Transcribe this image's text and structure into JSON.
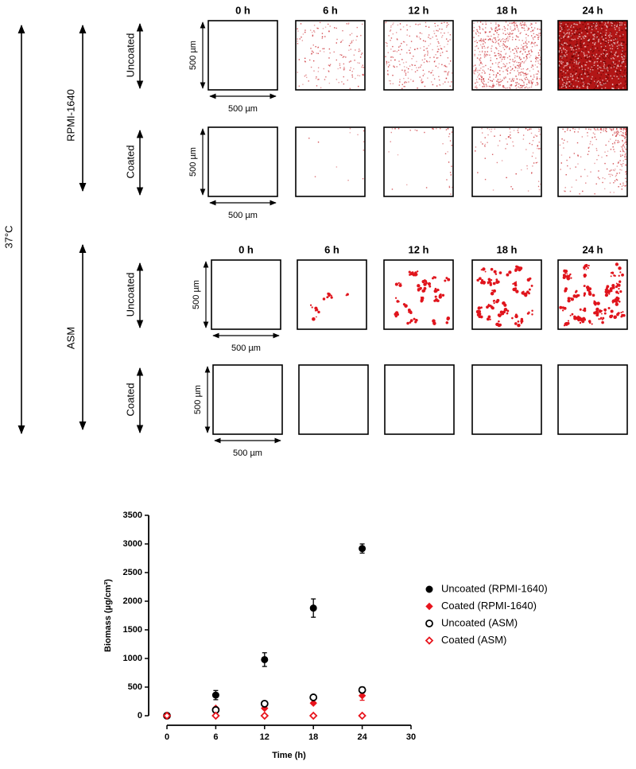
{
  "figure": {
    "temperature": "37°C",
    "media": [
      "RPMI-1640",
      "ASM"
    ],
    "coatings": [
      "Uncoated",
      "Coated",
      "Uncoated",
      "Coated"
    ],
    "time_headers": [
      [
        "0 h",
        "6 h",
        "12 h",
        "18 h",
        "24 h"
      ],
      [
        "0 h",
        "6 h",
        "12 h",
        "18 h",
        "24 h"
      ]
    ],
    "scale_bars": [
      [
        "500 µm",
        "500 µm"
      ],
      [
        "500 µm",
        "500 µm"
      ],
      [
        "500 µm",
        "500 µm"
      ],
      [
        "500 µm",
        "500 µm"
      ]
    ]
  },
  "chart_data": {
    "type": "scatter",
    "xlabel": "Time (h)",
    "ylabel": "Biomass (µg/cm²)",
    "x": [
      0,
      6,
      12,
      18,
      24
    ],
    "xlim": [
      0,
      30
    ],
    "xticks": [
      0,
      6,
      12,
      18,
      24,
      30
    ],
    "ylim": [
      0,
      3500
    ],
    "yticks": [
      0,
      500,
      1000,
      1500,
      2000,
      2500,
      3000,
      3500
    ],
    "legend": "right",
    "series": [
      {
        "name": "Uncoated (RPMI-1640)",
        "color": "#000000",
        "marker": "circle",
        "filled": true,
        "values": [
          0,
          360,
          980,
          1880,
          2920
        ],
        "errors": [
          0,
          80,
          120,
          160,
          80
        ]
      },
      {
        "name": "Coated (RPMI-1640)",
        "color": "#e8141c",
        "marker": "diamond",
        "filled": true,
        "values": [
          0,
          130,
          130,
          220,
          350
        ],
        "errors": [
          0,
          20,
          20,
          20,
          80
        ]
      },
      {
        "name": "Uncoated (ASM)",
        "color": "#000000",
        "marker": "circle",
        "filled": false,
        "values": [
          0,
          100,
          210,
          320,
          450
        ],
        "errors": [
          0,
          20,
          20,
          20,
          50
        ]
      },
      {
        "name": "Coated (ASM)",
        "color": "#e8141c",
        "marker": "diamond",
        "filled": false,
        "values": [
          0,
          0,
          0,
          0,
          0
        ],
        "errors": [
          0,
          0,
          0,
          0,
          0
        ]
      }
    ]
  }
}
